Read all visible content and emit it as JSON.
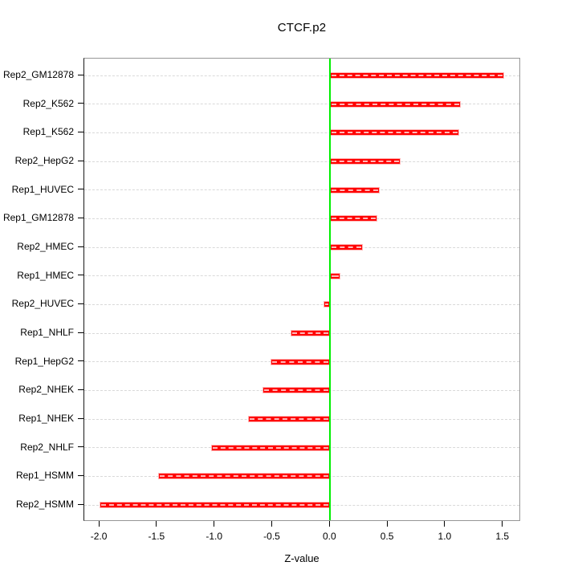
{
  "chart_data": {
    "type": "bar",
    "orientation": "horizontal",
    "title": "CTCF.p2",
    "xlabel": "Z-value",
    "ylabel": "",
    "categories": [
      "Rep2_GM12878",
      "Rep2_K562",
      "Rep1_K562",
      "Rep2_HepG2",
      "Rep1_HUVEC",
      "Rep1_GM12878",
      "Rep2_HMEC",
      "Rep1_HMEC",
      "Rep2_HUVEC",
      "Rep1_NHLF",
      "Rep1_HepG2",
      "Rep2_NHEK",
      "Rep1_NHEK",
      "Rep2_NHLF",
      "Rep1_HSMM",
      "Rep2_HSMM"
    ],
    "values": [
      1.51,
      1.13,
      1.12,
      0.61,
      0.43,
      0.41,
      0.28,
      0.09,
      -0.06,
      -0.34,
      -0.52,
      -0.59,
      -0.71,
      -1.03,
      -1.49,
      -2.0
    ],
    "x_ticks": [
      -2.0,
      -1.5,
      -1.0,
      -0.5,
      0.0,
      0.5,
      1.0,
      1.5
    ],
    "x_tick_labels": [
      "-2.0",
      "-1.5",
      "-1.0",
      "-0.5",
      "0.0",
      "0.5",
      "1.0",
      "1.5"
    ],
    "xlim": [
      -2.13,
      1.66
    ],
    "grid": "horizontal-dashed",
    "legend_position": "none",
    "zero_reference_line": 0.0,
    "colors": {
      "bar": "#ff0000",
      "bar_border": "#ffb4b4",
      "zero_line": "#00ee00",
      "grid_line": "#d9d9d9",
      "box_border": "#969696",
      "axis_text": "#000000"
    }
  }
}
